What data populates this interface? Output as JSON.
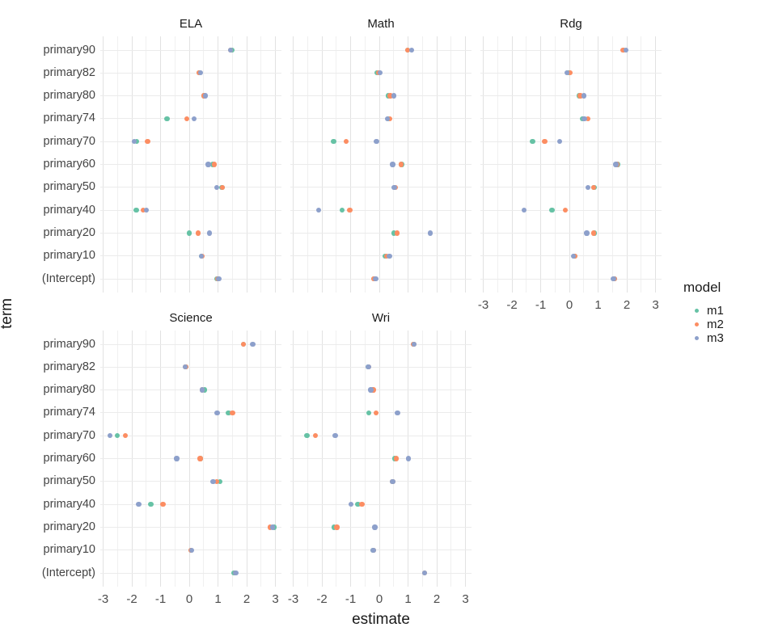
{
  "axis": {
    "x_title": "estimate",
    "y_title": "term"
  },
  "legend": {
    "title": "model",
    "items": [
      {
        "label": "m1",
        "color": "#66C2A5"
      },
      {
        "label": "m2",
        "color": "#FC8D62"
      },
      {
        "label": "m3",
        "color": "#8DA0CB"
      }
    ]
  },
  "chart_data": {
    "type": "scatter",
    "title": "",
    "xlabel": "estimate",
    "ylabel": "term",
    "facet_titles": [
      "ELA",
      "Math",
      "Rdg",
      "Science",
      "Wri"
    ],
    "terms_top_to_bottom": [
      "primary90",
      "primary82",
      "primary80",
      "primary74",
      "primary70",
      "primary60",
      "primary50",
      "primary40",
      "primary20",
      "primary10",
      "(Intercept)"
    ],
    "x_ticks": [
      -3,
      -2,
      -1,
      0,
      1,
      2,
      3
    ],
    "x_minor_step": 0.5,
    "xlim": [
      -3.15,
      3.15
    ],
    "grid": "major and minor vertical, major horizontal",
    "legend_position": "right",
    "models": [
      "m1",
      "m2",
      "m3"
    ],
    "model_colors": {
      "m1": "#66C2A5",
      "m2": "#FC8D62",
      "m3": "#8DA0CB"
    },
    "facets": [
      {
        "name": "ELA",
        "grid_row": 0,
        "grid_col": 0,
        "x_axis_labels": false,
        "series": {
          "m1": [
            1.5,
            0.34,
            0.51,
            -0.77,
            -1.83,
            0.81,
            1.14,
            -1.84,
            0.0,
            0.43,
            0.96
          ],
          "m2": [
            1.44,
            0.34,
            0.52,
            -0.09,
            -1.45,
            0.87,
            1.15,
            -1.61,
            0.31,
            0.45,
            1.0
          ],
          "m3": [
            1.43,
            0.39,
            0.57,
            0.17,
            -1.91,
            0.66,
            0.95,
            -1.49,
            0.7,
            0.43,
            1.03
          ]
        }
      },
      {
        "name": "Math",
        "grid_row": 0,
        "grid_col": 1,
        "x_axis_labels": false,
        "series": {
          "m1": [
            0.99,
            -0.08,
            0.31,
            0.31,
            -1.59,
            0.77,
            0.54,
            -1.3,
            0.51,
            0.2,
            -0.2
          ],
          "m2": [
            0.98,
            -0.02,
            0.38,
            0.36,
            -1.16,
            0.76,
            0.55,
            -1.03,
            0.62,
            0.26,
            -0.18
          ],
          "m3": [
            1.12,
            0.02,
            0.5,
            0.28,
            -0.1,
            0.46,
            0.52,
            -2.12,
            1.77,
            0.35,
            -0.13
          ]
        }
      },
      {
        "name": "Rdg",
        "grid_row": 0,
        "grid_col": 2,
        "x_axis_labels": true,
        "series": {
          "m1": [
            1.88,
            -0.03,
            0.34,
            0.47,
            -1.28,
            1.68,
            0.86,
            -0.61,
            0.87,
            0.18,
            1.56
          ],
          "m2": [
            1.87,
            0.02,
            0.38,
            0.64,
            -0.86,
            1.66,
            0.84,
            -0.14,
            0.85,
            0.2,
            1.56
          ],
          "m3": [
            1.98,
            -0.08,
            0.5,
            0.52,
            -0.33,
            1.62,
            0.64,
            -1.57,
            0.61,
            0.14,
            1.54
          ]
        }
      },
      {
        "name": "Science",
        "grid_row": 1,
        "grid_col": 0,
        "x_axis_labels": true,
        "series": {
          "m1": [
            1.89,
            -0.13,
            0.54,
            1.37,
            -2.5,
            0.4,
            1.07,
            -1.34,
            2.95,
            0.06,
            1.56
          ],
          "m2": [
            1.89,
            -0.13,
            0.45,
            1.51,
            -2.23,
            0.38,
            0.95,
            -0.91,
            2.82,
            0.06,
            1.6
          ],
          "m3": [
            2.21,
            -0.14,
            0.45,
            0.97,
            -2.76,
            -0.44,
            0.83,
            -1.76,
            2.9,
            0.08,
            1.62
          ]
        }
      },
      {
        "name": "Wri",
        "grid_row": 1,
        "grid_col": 1,
        "x_axis_labels": true,
        "series": {
          "m1": [
            1.2,
            -0.4,
            -0.23,
            -0.36,
            -2.52,
            0.54,
            0.47,
            -0.75,
            -1.57,
            -0.21,
            1.58
          ],
          "m2": [
            1.2,
            -0.37,
            -0.21,
            -0.11,
            -2.23,
            0.6,
            0.47,
            -0.61,
            -1.48,
            -0.2,
            1.58
          ],
          "m3": [
            1.21,
            -0.38,
            -0.3,
            0.63,
            -1.53,
            1.01,
            0.46,
            -0.99,
            -0.16,
            -0.21,
            1.57
          ]
        }
      }
    ]
  }
}
